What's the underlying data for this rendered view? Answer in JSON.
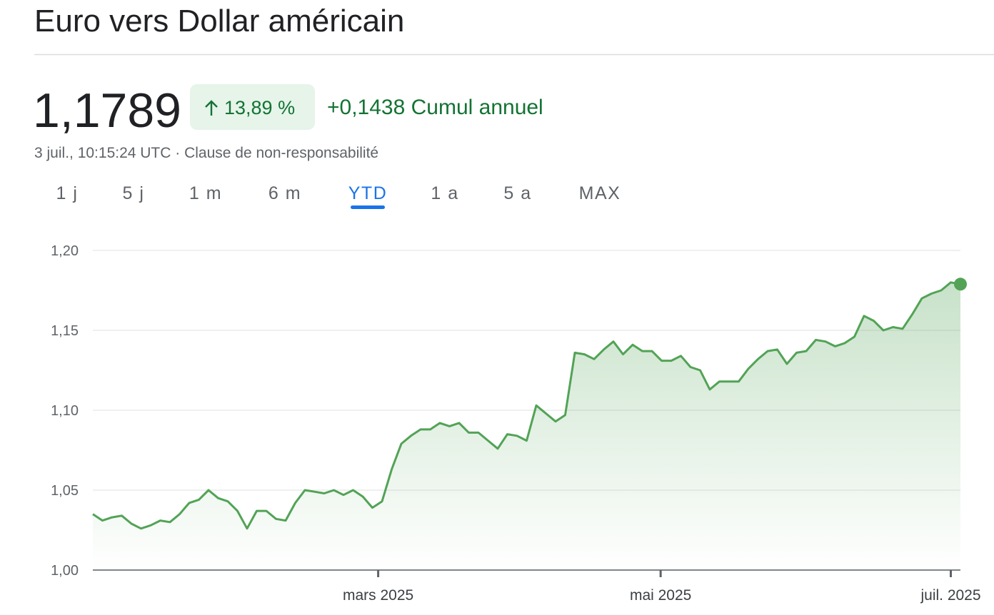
{
  "header": {
    "title": "Euro vers Dollar américain",
    "price": "1,1789",
    "change_pct": "13,89 %",
    "change_abs": "+0,1438 Cumul annuel",
    "timestamp": "3 juil., 10:15:24 UTC · Clause de non-responsabilité"
  },
  "tabs": [
    "1 j",
    "5 j",
    "1 m",
    "6 m",
    "YTD",
    "1 a",
    "5 a",
    "MAX"
  ],
  "active_tab": 4,
  "chart_data": {
    "type": "line",
    "color": "#52a356",
    "values": [
      1.035,
      1.031,
      1.033,
      1.034,
      1.029,
      1.026,
      1.028,
      1.031,
      1.03,
      1.035,
      1.042,
      1.044,
      1.05,
      1.045,
      1.043,
      1.037,
      1.026,
      1.037,
      1.037,
      1.032,
      1.031,
      1.042,
      1.05,
      1.049,
      1.048,
      1.05,
      1.047,
      1.05,
      1.046,
      1.039,
      1.043,
      1.063,
      1.079,
      1.084,
      1.088,
      1.088,
      1.092,
      1.09,
      1.092,
      1.086,
      1.086,
      1.081,
      1.076,
      1.085,
      1.084,
      1.081,
      1.103,
      1.098,
      1.093,
      1.097,
      1.136,
      1.135,
      1.132,
      1.138,
      1.143,
      1.135,
      1.141,
      1.137,
      1.137,
      1.131,
      1.131,
      1.134,
      1.127,
      1.125,
      1.113,
      1.118,
      1.118,
      1.118,
      1.126,
      1.132,
      1.137,
      1.138,
      1.129,
      1.136,
      1.137,
      1.144,
      1.143,
      1.14,
      1.142,
      1.146,
      1.159,
      1.156,
      1.15,
      1.152,
      1.151,
      1.16,
      1.17,
      1.173,
      1.175,
      1.18,
      1.1789
    ],
    "xlim": [
      0,
      90
    ],
    "xticks": [
      {
        "value": 29.6,
        "label": "mars 2025"
      },
      {
        "value": 58.9,
        "label": "mai 2025"
      },
      {
        "value": 89,
        "label": "juil. 2025"
      }
    ],
    "ylim": [
      1.0,
      1.2
    ],
    "yticks": [
      {
        "value": 1.0,
        "label": "1,00"
      },
      {
        "value": 1.05,
        "label": "1,05"
      },
      {
        "value": 1.1,
        "label": "1,10"
      },
      {
        "value": 1.15,
        "label": "1,15"
      },
      {
        "value": 1.2,
        "label": "1,20"
      }
    ],
    "grid": true
  }
}
